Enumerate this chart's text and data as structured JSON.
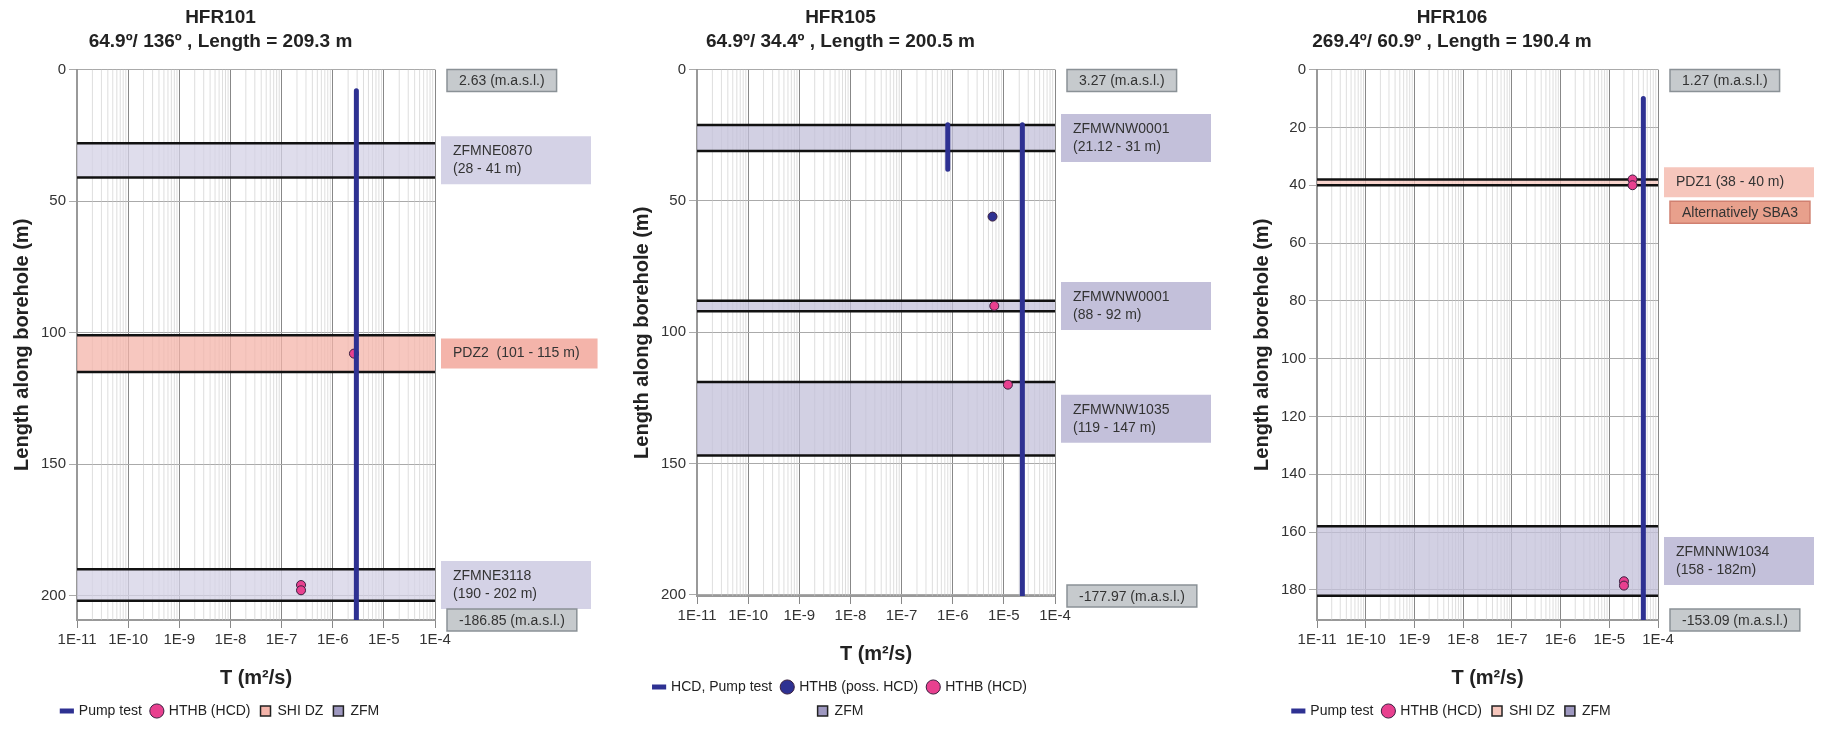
{
  "chart_data": [
    {
      "type": "line",
      "title": "HFR101",
      "subtitle": "64.9º/ 136º , Length = 209.3 m",
      "xlabel": "T (m²/s)",
      "ylabel": "Length along borehole (m)",
      "log": "x",
      "grid": true,
      "legend": "bottom",
      "xlim": [
        1e-11,
        0.0001
      ],
      "xticks": [
        {
          "value": 1e-11,
          "label": "1E-11"
        },
        {
          "value": 1e-10,
          "label": "1E-10"
        },
        {
          "value": 1e-09,
          "label": "1E-9"
        },
        {
          "value": 1e-08,
          "label": "1E-8"
        },
        {
          "value": 1e-07,
          "label": "1E-7"
        },
        {
          "value": 1e-06,
          "label": "1E-6"
        },
        {
          "value": 1e-05,
          "label": "1E-5"
        },
        {
          "value": 0.0001,
          "label": "1E-4"
        }
      ],
      "ylim": [
        209.3,
        0
      ],
      "yticks": [
        0,
        50,
        100,
        150,
        200
      ],
      "series": [
        {
          "name": "Pump test",
          "marker": "none",
          "color": "#2e3192",
          "x": [
            2.9e-06,
            2.9e-06
          ],
          "values": [
            8,
            209.3
          ]
        },
        {
          "name": "HTHB (HCD)",
          "type": "scatter",
          "marker": "circle",
          "color": "#e8408f",
          "x": [
            2.6e-06,
            2.4e-07,
            2.4e-07
          ],
          "values": [
            108,
            196,
            198
          ]
        },
        {
          "name": "SHI DZ",
          "color": "#f4b4aa"
        },
        {
          "name": "ZFM",
          "color": "#9e98c0"
        }
      ],
      "bands": [
        {
          "axis": "y",
          "from": 28,
          "to": 41,
          "label": "ZFMNE0870\n(28 - 41 m)",
          "color": "#d4d2e6"
        },
        {
          "axis": "y",
          "from": 101,
          "to": 115,
          "label": "PDZ2  (101 - 115 m)",
          "color": "#f4b4aa"
        },
        {
          "axis": "y",
          "from": 190,
          "to": 202,
          "label": "ZFMNE3118\n(190 - 202 m)",
          "color": "#d4d2e6"
        }
      ],
      "annotations": [
        "2.63 (m.a.s.l.)",
        "-186.85 (m.a.s.l.)"
      ]
    },
    {
      "type": "line",
      "title": "HFR105",
      "subtitle": "64.9º/ 34.4º , Length = 200.5 m",
      "xlabel": "T (m²/s)",
      "ylabel": "Length along borehole (m)",
      "log": "x",
      "grid": true,
      "legend": "bottom",
      "xlim": [
        1e-11,
        0.0001
      ],
      "xticks": [
        {
          "value": 1e-11,
          "label": "1E-11"
        },
        {
          "value": 1e-10,
          "label": "1E-10"
        },
        {
          "value": 1e-09,
          "label": "1E-9"
        },
        {
          "value": 1e-08,
          "label": "1E-8"
        },
        {
          "value": 1e-07,
          "label": "1E-7"
        },
        {
          "value": 1e-06,
          "label": "1E-6"
        },
        {
          "value": 1e-05,
          "label": "1E-5"
        },
        {
          "value": 0.0001,
          "label": "1E-4"
        }
      ],
      "ylim": [
        200.5,
        0
      ],
      "yticks": [
        0,
        50,
        100,
        150,
        200
      ],
      "series": [
        {
          "name": "HCD, Pump test",
          "marker": "none",
          "color": "#2e3192",
          "x": [
            8e-07,
            8e-07,
            null,
            2.3e-05,
            2.3e-05
          ],
          "values": [
            21,
            38,
            null,
            21,
            200.5
          ]
        },
        {
          "name": "HTHB (poss. HCD)",
          "type": "scatter",
          "marker": "circle",
          "color": "#2e3192",
          "x": [
            6e-06
          ],
          "values": [
            56
          ]
        },
        {
          "name": "HTHB (HCD)",
          "type": "scatter",
          "marker": "circle",
          "color": "#e8408f",
          "x": [
            6.5e-06,
            1.2e-05
          ],
          "values": [
            90,
            120
          ]
        },
        {
          "name": "ZFM",
          "color": "#9e98c0"
        }
      ],
      "bands": [
        {
          "axis": "y",
          "from": 21.12,
          "to": 31,
          "label": "ZFMWNW0001\n(21.12 - 31 m)",
          "color": "#c3c0da"
        },
        {
          "axis": "y",
          "from": 88,
          "to": 92,
          "label": "ZFMWNW0001\n(88 - 92 m)",
          "color": "#c3c0da"
        },
        {
          "axis": "y",
          "from": 119,
          "to": 147,
          "label": "ZFMWNW1035\n(119 - 147 m)",
          "color": "#c3c0da"
        }
      ],
      "annotations": [
        "3.27 (m.a.s.l.)",
        "-177.97 (m.a.s.l.)"
      ]
    },
    {
      "type": "line",
      "title": "HFR106",
      "subtitle": "269.4º/ 60.9º , Length = 190.4 m",
      "xlabel": "T (m²/s)",
      "ylabel": "Length along borehole (m)",
      "log": "x",
      "grid": true,
      "legend": "bottom",
      "xlim": [
        1e-11,
        0.0001
      ],
      "xticks": [
        {
          "value": 1e-11,
          "label": "1E-11"
        },
        {
          "value": 1e-10,
          "label": "1E-10"
        },
        {
          "value": 1e-09,
          "label": "1E-9"
        },
        {
          "value": 1e-08,
          "label": "1E-8"
        },
        {
          "value": 1e-07,
          "label": "1E-7"
        },
        {
          "value": 1e-06,
          "label": "1E-6"
        },
        {
          "value": 1e-05,
          "label": "1E-5"
        },
        {
          "value": 0.0001,
          "label": "1E-4"
        }
      ],
      "ylim": [
        190.4,
        0
      ],
      "yticks": [
        0,
        20,
        40,
        60,
        80,
        100,
        120,
        140,
        160,
        180
      ],
      "series": [
        {
          "name": "Pump test",
          "marker": "none",
          "color": "#2e3192",
          "x": [
            5e-05,
            5e-05
          ],
          "values": [
            10,
            190.4
          ]
        },
        {
          "name": "HTHB (HCD)",
          "type": "scatter",
          "marker": "circle",
          "color": "#e8408f",
          "x": [
            3e-05,
            3e-05,
            2e-05,
            2e-05
          ],
          "values": [
            38,
            40,
            177,
            178.5
          ]
        },
        {
          "name": "SHI DZ",
          "color": "#f6c6bc"
        },
        {
          "name": "ZFM",
          "color": "#9e98c0"
        }
      ],
      "bands": [
        {
          "axis": "y",
          "from": 38,
          "to": 40,
          "label": "PDZ1 (38 - 40 m)",
          "color": "#f6c6bc"
        },
        {
          "axis": "y",
          "from": 158,
          "to": 182,
          "label": "ZFMNNW1034\n(158 - 182m)",
          "color": "#c3c0da"
        }
      ],
      "annotations": [
        "1.27 (m.a.s.l.)",
        "Alternatively SBA3",
        "-153.09 (m.a.s.l.)"
      ]
    }
  ]
}
